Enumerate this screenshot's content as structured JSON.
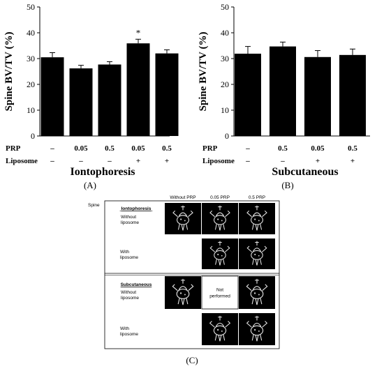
{
  "chart_data": [
    {
      "type": "bar",
      "panel_label": "(A)",
      "ylabel": "Spine BV/TV (%)",
      "ylim": [
        0,
        50
      ],
      "yticks": [
        "0",
        "10",
        "20",
        "30",
        "40",
        "50"
      ],
      "values": [
        30.5,
        26.2,
        27.7,
        35.9,
        32.0
      ],
      "errors": [
        1.8,
        1.2,
        1.1,
        1.6,
        1.4
      ],
      "annotations": [
        "",
        "",
        "",
        "*",
        ""
      ],
      "row_labels": [
        "PRP",
        "Liposome"
      ],
      "rows": [
        [
          "–",
          "0.05",
          "0.5",
          "0.05",
          "0.5"
        ],
        [
          "–",
          "–",
          "–",
          "+",
          "+"
        ]
      ],
      "xlabel": "Iontophoresis"
    },
    {
      "type": "bar",
      "panel_label": "(B)",
      "ylabel": "Spine BV/TV (%)",
      "ylim": [
        0,
        50
      ],
      "yticks": [
        "0",
        "10",
        "20",
        "30",
        "40",
        "50"
      ],
      "values": [
        31.9,
        34.7,
        30.6,
        31.4
      ],
      "errors": [
        2.8,
        1.7,
        2.5,
        2.3
      ],
      "annotations": [
        "",
        "",
        "",
        ""
      ],
      "row_labels": [
        "PRP",
        "Liposome"
      ],
      "rows": [
        [
          "–",
          "0.5",
          "0.05",
          "0.5"
        ],
        [
          "–",
          "–",
          "+",
          "+"
        ]
      ],
      "xlabel": "Subcutaneous"
    }
  ],
  "figure_c": {
    "panel_label": "(C)",
    "corner_label": "Spine",
    "column_headers": [
      "Without PRP",
      "0.05 PRP",
      "0.5 PRP"
    ],
    "sections": [
      {
        "heading": "Iontophoresis",
        "rows": [
          {
            "label": "Without liposome",
            "cells": [
              "image",
              "image",
              "image"
            ]
          },
          {
            "label": "With liposome",
            "cells": [
              "empty",
              "image",
              "image"
            ]
          }
        ]
      },
      {
        "heading": "Subcutaneous",
        "rows": [
          {
            "label": "Without liposome",
            "cells": [
              "image",
              "Not performed",
              "image"
            ]
          },
          {
            "label": "With liposome",
            "cells": [
              "empty",
              "image",
              "image"
            ]
          }
        ]
      }
    ]
  }
}
